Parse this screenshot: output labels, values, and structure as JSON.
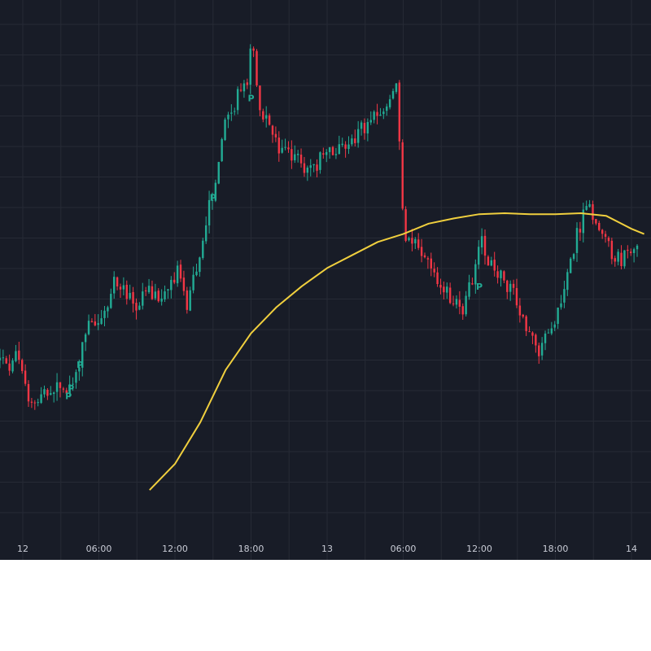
{
  "colors": {
    "background": "#181c27",
    "grid": "#262a35",
    "up": "#22ab94",
    "down": "#f23645",
    "ma_line": "#f0cf3e",
    "axis_text": "#c9ccd6",
    "marker": "#22ab94"
  },
  "chart_data": {
    "type": "candlestick",
    "timeframe_hours_per_bar": 0.25,
    "x_axis": {
      "start": "12 00:00",
      "end": "14 04:00",
      "tick_labels": [
        {
          "t": 0,
          "label": "12"
        },
        {
          "t": 6,
          "label": "06:00"
        },
        {
          "t": 12,
          "label": "12:00"
        },
        {
          "t": 18,
          "label": "18:00"
        },
        {
          "t": 24,
          "label": "13"
        },
        {
          "t": 30,
          "label": "06:00"
        },
        {
          "t": 36,
          "label": "12:00"
        },
        {
          "t": 42,
          "label": "18:00"
        },
        {
          "t": 48,
          "label": "14"
        }
      ]
    },
    "y_range": [
      0,
      100
    ],
    "price_path": [
      {
        "t": -1.8,
        "p": 34
      },
      {
        "t": -0.8,
        "p": 33
      },
      {
        "t": -0.3,
        "p": 36
      },
      {
        "t": 0.4,
        "p": 28
      },
      {
        "t": 1.2,
        "p": 26
      },
      {
        "t": 2.0,
        "p": 27
      },
      {
        "t": 3.0,
        "p": 29
      },
      {
        "t": 3.6,
        "p": 27
      },
      {
        "t": 4.5,
        "p": 31
      },
      {
        "t": 5.0,
        "p": 38
      },
      {
        "t": 5.5,
        "p": 42
      },
      {
        "t": 6.3,
        "p": 41
      },
      {
        "t": 7.0,
        "p": 44
      },
      {
        "t": 7.5,
        "p": 50
      },
      {
        "t": 8.0,
        "p": 48
      },
      {
        "t": 8.5,
        "p": 46
      },
      {
        "t": 9.2,
        "p": 44
      },
      {
        "t": 10.0,
        "p": 47
      },
      {
        "t": 11.0,
        "p": 45
      },
      {
        "t": 12.0,
        "p": 49
      },
      {
        "t": 12.5,
        "p": 51
      },
      {
        "t": 13.2,
        "p": 44
      },
      {
        "t": 14.0,
        "p": 52
      },
      {
        "t": 14.5,
        "p": 58
      },
      {
        "t": 15.0,
        "p": 64
      },
      {
        "t": 15.5,
        "p": 67
      },
      {
        "t": 16.2,
        "p": 80
      },
      {
        "t": 17.0,
        "p": 83
      },
      {
        "t": 17.5,
        "p": 86
      },
      {
        "t": 18.0,
        "p": 87
      },
      {
        "t": 18.3,
        "p": 97
      },
      {
        "t": 18.7,
        "p": 85
      },
      {
        "t": 19.5,
        "p": 79
      },
      {
        "t": 20.5,
        "p": 74
      },
      {
        "t": 22.0,
        "p": 72
      },
      {
        "t": 23.0,
        "p": 70
      },
      {
        "t": 24.0,
        "p": 73
      },
      {
        "t": 25.5,
        "p": 75
      },
      {
        "t": 27.0,
        "p": 78
      },
      {
        "t": 28.5,
        "p": 81
      },
      {
        "t": 29.5,
        "p": 85
      },
      {
        "t": 29.8,
        "p": 88
      },
      {
        "t": 30.0,
        "p": 72
      },
      {
        "t": 30.3,
        "p": 58
      },
      {
        "t": 31.0,
        "p": 57
      },
      {
        "t": 32.0,
        "p": 53
      },
      {
        "t": 33.0,
        "p": 49
      },
      {
        "t": 34.0,
        "p": 46
      },
      {
        "t": 35.0,
        "p": 44
      },
      {
        "t": 35.8,
        "p": 50
      },
      {
        "t": 36.4,
        "p": 57
      },
      {
        "t": 37.0,
        "p": 53
      },
      {
        "t": 38.0,
        "p": 50
      },
      {
        "t": 39.0,
        "p": 46
      },
      {
        "t": 40.0,
        "p": 40
      },
      {
        "t": 40.8,
        "p": 35
      },
      {
        "t": 41.5,
        "p": 38
      },
      {
        "t": 42.5,
        "p": 44
      },
      {
        "t": 43.3,
        "p": 52
      },
      {
        "t": 44.0,
        "p": 58
      },
      {
        "t": 44.8,
        "p": 64
      },
      {
        "t": 45.5,
        "p": 60
      },
      {
        "t": 46.5,
        "p": 55
      },
      {
        "t": 47.5,
        "p": 53
      },
      {
        "t": 48.5,
        "p": 56
      }
    ],
    "moving_average": [
      {
        "t": 10.0,
        "p": 9
      },
      {
        "t": 12.0,
        "p": 14
      },
      {
        "t": 14.0,
        "p": 22
      },
      {
        "t": 16.0,
        "p": 32
      },
      {
        "t": 18.0,
        "p": 39
      },
      {
        "t": 20.0,
        "p": 44
      },
      {
        "t": 22.0,
        "p": 48
      },
      {
        "t": 24.0,
        "p": 51.5
      },
      {
        "t": 26.0,
        "p": 54
      },
      {
        "t": 28.0,
        "p": 56.5
      },
      {
        "t": 30.0,
        "p": 58
      },
      {
        "t": 32.0,
        "p": 60
      },
      {
        "t": 34.0,
        "p": 61
      },
      {
        "t": 36.0,
        "p": 61.8
      },
      {
        "t": 38.0,
        "p": 62
      },
      {
        "t": 40.0,
        "p": 61.8
      },
      {
        "t": 42.0,
        "p": 61.8
      },
      {
        "t": 44.0,
        "p": 62
      },
      {
        "t": 46.0,
        "p": 61.5
      },
      {
        "t": 48.0,
        "p": 59
      },
      {
        "t": 49.0,
        "p": 58
      }
    ],
    "markers": [
      {
        "t": 3.6,
        "p": 27,
        "label": "P"
      },
      {
        "t": 3.8,
        "p": 28.5,
        "label": "P"
      },
      {
        "t": 4.5,
        "p": 33,
        "label": "P"
      },
      {
        "t": 15.0,
        "p": 65,
        "label": "P"
      },
      {
        "t": 18.0,
        "p": 84,
        "label": "P"
      },
      {
        "t": 36.0,
        "p": 48,
        "label": "P"
      }
    ],
    "grid": true
  }
}
